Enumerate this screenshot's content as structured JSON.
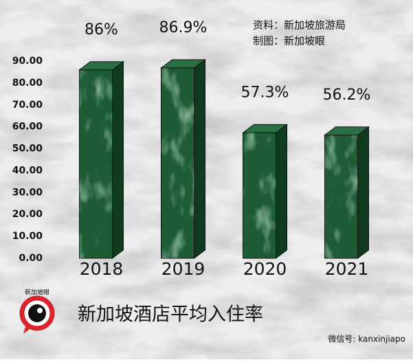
{
  "chart_data": {
    "type": "bar",
    "title": "新加坡酒店平均入住率",
    "annotations": [
      "资料：新加坡旅游局",
      "制图：新加坡眼"
    ],
    "categories": [
      "2018",
      "2019",
      "2020",
      "2021"
    ],
    "values": [
      86,
      86.9,
      57.3,
      56.2
    ],
    "value_labels": [
      "86%",
      "86.9%",
      "57.3%",
      "56.2%"
    ],
    "color": "#1e5c36",
    "ylim": [
      0,
      90
    ],
    "yticks": [
      {
        "value": 0,
        "label": "0.00"
      },
      {
        "value": 10,
        "label": "10.00"
      },
      {
        "value": 20,
        "label": "20.00"
      },
      {
        "value": 30,
        "label": "30.00"
      },
      {
        "value": 40,
        "label": "40.00"
      },
      {
        "value": 50,
        "label": "50.00"
      },
      {
        "value": 60,
        "label": "60.00"
      },
      {
        "value": 70,
        "label": "70.00"
      },
      {
        "value": 80,
        "label": "80.00"
      },
      {
        "value": 90,
        "label": "90.00"
      }
    ],
    "grid": false
  },
  "logo_text": "新加坡眼",
  "watermark": "微信号: kanxinjiapo"
}
